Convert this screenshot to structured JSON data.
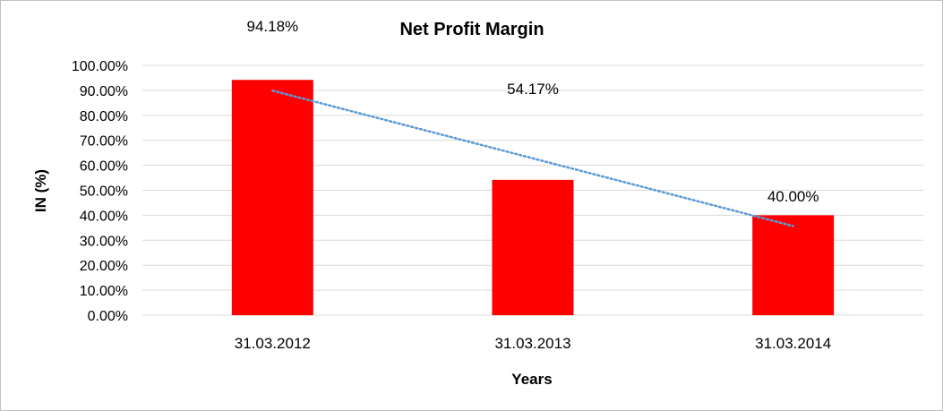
{
  "chart_data": {
    "type": "bar",
    "title": "Net Profit Margin",
    "xlabel": "Years",
    "ylabel": "IN (%)",
    "categories": [
      "31.03.2012",
      "31.03.2013",
      "31.03.2014"
    ],
    "values": [
      94.18,
      54.17,
      40.0
    ],
    "data_labels": [
      "94.18%",
      "54.17%",
      "40.00%"
    ],
    "y_ticks": [
      "0.00%",
      "10.00%",
      "20.00%",
      "30.00%",
      "40.00%",
      "50.00%",
      "60.00%",
      "70.00%",
      "80.00%",
      "90.00%",
      "100.00%"
    ],
    "ylim": [
      0,
      100
    ],
    "grid": true,
    "legend": "none",
    "bar_color": "#ff0000",
    "trendline": {
      "type": "linear",
      "style": "dotted",
      "color": "#5b9bd5"
    }
  }
}
